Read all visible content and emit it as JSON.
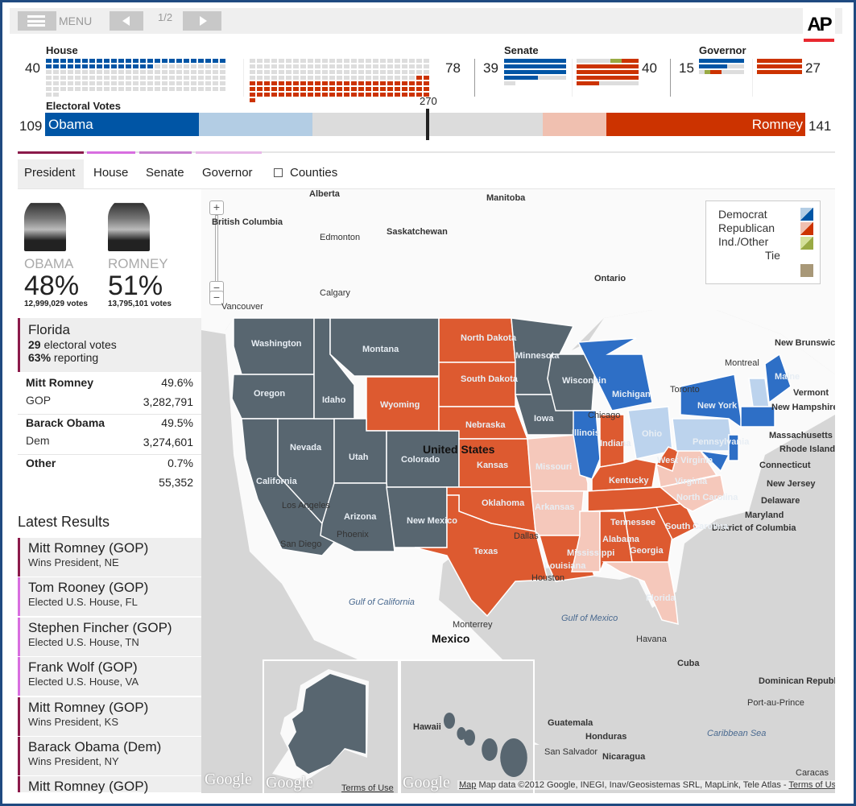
{
  "toolbar": {
    "menu_label": "MENU",
    "page_indicator": "1/2",
    "logo": "AP"
  },
  "house": {
    "title": "House",
    "dem": 40,
    "rep": 78,
    "dem_label": "40",
    "rep_label": "78"
  },
  "senate": {
    "title": "Senate",
    "dem": 39,
    "rep": 40,
    "other": 2,
    "dem_label": "39",
    "rep_label": "40"
  },
  "governor": {
    "title": "Governor",
    "dem": 15,
    "rep": 27,
    "other": 1,
    "dem_label": "15",
    "rep_label": "27"
  },
  "electoral": {
    "title": "Electoral Votes",
    "obama": 109,
    "romney": 141,
    "obama_label": "109",
    "romney_label": "141",
    "threshold": "270",
    "obama_name": "Obama",
    "romney_name": "Romney",
    "total": 538,
    "obama_lean": 80,
    "romney_lean": 45
  },
  "tabs": [
    {
      "label": "President",
      "active": true
    },
    {
      "label": "House"
    },
    {
      "label": "Senate"
    },
    {
      "label": "Governor"
    },
    {
      "label": "Counties",
      "checkbox": true,
      "checked": false
    }
  ],
  "tab_colors": [
    "#8b1a4a",
    "#d86ee0",
    "#c980d0",
    "#e8b8e8"
  ],
  "candidates": [
    {
      "name": "OBAMA",
      "pct": "48%",
      "votes": "12,999,029 votes"
    },
    {
      "name": "ROMNEY",
      "pct": "51%",
      "votes": "13,795,101 votes"
    }
  ],
  "state_detail": {
    "name": "Florida",
    "ev_num": "29",
    "ev_text": " electoral votes",
    "rep_num": "63%",
    "rep_text": " reporting",
    "rows": [
      {
        "name": "Mitt Romney",
        "party": "GOP",
        "pct": "49.6%",
        "votes": "3,282,791"
      },
      {
        "name": "Barack Obama",
        "party": "Dem",
        "pct": "49.5%",
        "votes": "3,274,601"
      },
      {
        "name": "Other",
        "party": "",
        "pct": "0.7%",
        "votes": "55,352"
      }
    ]
  },
  "latest": {
    "title": "Latest Results",
    "items": [
      {
        "title": "Mitt Romney (GOP)",
        "sub": "Wins President, NE",
        "color": "#8b1a4a"
      },
      {
        "title": "Tom Rooney (GOP)",
        "sub": "Elected U.S. House, FL",
        "color": "#d86ee0"
      },
      {
        "title": "Stephen Fincher (GOP)",
        "sub": "Elected U.S. House, TN",
        "color": "#d86ee0"
      },
      {
        "title": "Frank Wolf (GOP)",
        "sub": "Elected U.S. House, VA",
        "color": "#d86ee0"
      },
      {
        "title": "Mitt Romney (GOP)",
        "sub": "Wins President, KS",
        "color": "#8b1a4a"
      },
      {
        "title": "Barack Obama (Dem)",
        "sub": "Wins President, NY",
        "color": "#8b1a4a"
      },
      {
        "title": "Mitt Romney (GOP)",
        "sub": "",
        "color": "#8b1a4a"
      }
    ]
  },
  "legend": {
    "items": [
      "Democrat",
      "Republican",
      "Ind./Other",
      "Tie"
    ]
  },
  "colors": {
    "dem": "#0055a5",
    "dem_lean": "#b3cde4",
    "rep": "#cc3300",
    "rep_lean": "#f0c0b0",
    "other": "#99aa44",
    "tie": "#a89878",
    "empty": "#dddddd",
    "map_dem": "#2e6fc6",
    "map_dem_lean": "#bcd3ed",
    "map_rep": "#dd5a30",
    "map_rep_lean": "#f5c8bb",
    "map_none": "#586670"
  },
  "states": {
    "Washington": "none",
    "Oregon": "none",
    "California": "none",
    "Nevada": "none",
    "Idaho": "none",
    "Montana": "none",
    "Wyoming": "rep",
    "Utah": "none",
    "Colorado": "none",
    "Arizona": "none",
    "New Mexico": "none",
    "North Dakota": "rep",
    "South Dakota": "rep",
    "Nebraska": "rep",
    "Kansas": "rep",
    "Oklahoma": "rep",
    "Texas": "rep",
    "Minnesota": "none",
    "Iowa": "none",
    "Missouri": "rep_lean",
    "Arkansas": "rep_lean",
    "Louisiana": "rep",
    "Wisconsin": "none",
    "Illinois": "dem",
    "Michigan": "dem",
    "Indiana": "rep",
    "Ohio": "dem_lean",
    "Kentucky": "rep",
    "Tennessee": "rep",
    "Mississippi": "rep_lean",
    "Alabama": "rep",
    "Georgia": "rep",
    "Florida": "rep_lean",
    "South Carolina": "rep",
    "North Carolina": "rep_lean",
    "Virginia": "rep_lean",
    "West Virginia": "rep",
    "Pennsylvania": "dem_lean",
    "New York": "dem",
    "Maine": "dem",
    "Vermont/New Hampshire": "dem_lean",
    "New England": "dem",
    "New Jersey": "dem",
    "Maryland/Delaware": "dem",
    "Alaska": "none",
    "Hawaii": "none"
  },
  "map_labels": [
    "Alberta",
    "Manitoba",
    "British Columbia",
    "Saskatchewan",
    "Edmonton",
    "Ontario",
    "Calgary",
    "Vancouver",
    "Montreal",
    "Toronto",
    "United States",
    "Gulf of California",
    "Gulf of Mexico",
    "Monterrey",
    "Mexico",
    "Havana",
    "Cuba",
    "Dominican Republic",
    "Port-au-Prince",
    "Guatemala",
    "Honduras",
    "San Salvador",
    "Nicaragua",
    "Caribbean Sea",
    "Caracas",
    "Hawaii",
    "San Diego",
    "Houston",
    "Dallas",
    "Chicago",
    "Phoenix",
    "Los Angeles",
    "New Brunswick",
    "Massachusetts",
    "Vermont",
    "New Hampshire",
    "Rhode Island",
    "Connecticut",
    "New Jersey",
    "Delaware",
    "Maryland",
    "District of Columbia",
    "Washington",
    "Oregon",
    "Idaho",
    "Montana",
    "Nevada",
    "Utah",
    "California",
    "Wyoming",
    "Colorado",
    "Arizona",
    "New Mexico",
    "North Dakota",
    "South Dakota",
    "Nebraska",
    "Kansas",
    "Oklahoma",
    "Texas",
    "Minnesota",
    "Iowa",
    "Missouri",
    "Arkansas",
    "Louisiana",
    "Wisconsin",
    "Illinois",
    "Michigan",
    "Indiana",
    "Ohio",
    "Kentucky",
    "Tennessee",
    "Mississippi",
    "Alabama",
    "Georgia",
    "Florida",
    "South Carolina",
    "North Carolina",
    "Virginia",
    "West Virginia",
    "Pennsylvania",
    "New York",
    "Maine"
  ],
  "map_footer": {
    "google": "Google",
    "terms": "Terms of Use",
    "map_link": "Map",
    "attribution": "Map data ©2012 Google, INEGI, Inav/Geosistemas SRL, MapLink, Tele Atlas - ",
    "terms2": "Terms of Use"
  },
  "zoom": {
    "in": "+",
    "out": "−"
  }
}
